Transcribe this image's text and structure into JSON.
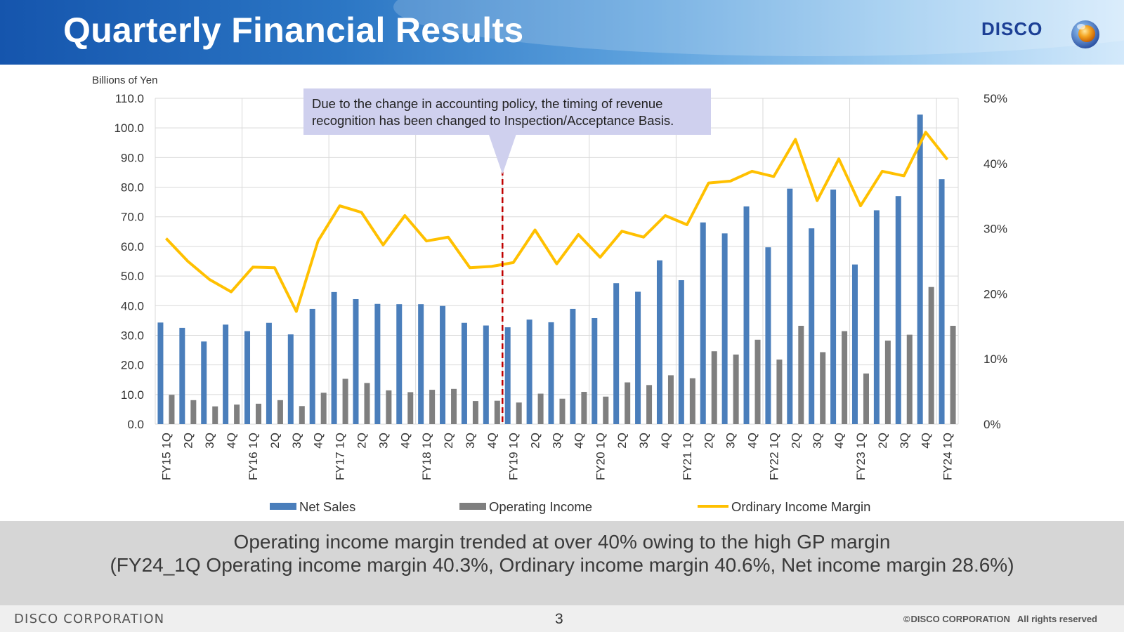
{
  "header": {
    "title": "Quarterly Financial Results",
    "logo_text": "DISCO",
    "logo_icon": "disco-globe-logo-icon"
  },
  "chart_data": {
    "type": "bar+line",
    "ylabel": "Billions of Yen",
    "ylim": [
      0,
      110
    ],
    "y_ticks": [
      "110.0",
      "100.0",
      "90.0",
      "80.0",
      "70.0",
      "60.0",
      "50.0",
      "40.0",
      "30.0",
      "20.0",
      "10.0",
      "0.0"
    ],
    "y2lim": [
      0,
      50
    ],
    "y2_ticks": [
      "50%",
      "40%",
      "30%",
      "20%",
      "10%",
      "0%"
    ],
    "grid": true,
    "legend_position": "bottom",
    "categories": [
      "FY15 1Q",
      "2Q",
      "3Q",
      "4Q",
      "FY16 1Q",
      "2Q",
      "3Q",
      "4Q",
      "FY17 1Q",
      "2Q",
      "3Q",
      "4Q",
      "FY18 1Q",
      "2Q",
      "3Q",
      "4Q",
      "FY19 1Q",
      "2Q",
      "3Q",
      "4Q",
      "FY20 1Q",
      "2Q",
      "3Q",
      "4Q",
      "FY21 1Q",
      "2Q",
      "3Q",
      "4Q",
      "FY22 1Q",
      "2Q",
      "3Q",
      "4Q",
      "FY23 1Q",
      "2Q",
      "3Q",
      "4Q",
      "FY24 1Q"
    ],
    "series": [
      {
        "name": "Net Sales",
        "kind": "bar",
        "axis": "left",
        "color": "#4a7ebb",
        "values": [
          34.3,
          32.5,
          27.9,
          33.6,
          31.4,
          34.2,
          30.3,
          38.9,
          44.6,
          42.2,
          40.6,
          40.5,
          40.5,
          39.9,
          34.2,
          33.3,
          32.7,
          35.3,
          34.4,
          38.9,
          35.8,
          47.6,
          44.7,
          55.3,
          48.6,
          68.1,
          64.4,
          73.5,
          59.7,
          79.5,
          66.1,
          79.2,
          53.9,
          72.2,
          77.0,
          104.5,
          82.7
        ]
      },
      {
        "name": "Operating Income",
        "kind": "bar",
        "axis": "left",
        "color": "#7f7f7f",
        "values": [
          9.9,
          8.1,
          6.0,
          6.6,
          6.9,
          8.1,
          6.1,
          10.6,
          15.3,
          13.9,
          11.4,
          10.8,
          11.6,
          11.9,
          7.8,
          7.9,
          7.3,
          10.3,
          8.6,
          10.9,
          9.3,
          14.1,
          13.2,
          16.5,
          15.5,
          24.6,
          23.5,
          28.5,
          21.8,
          33.2,
          24.3,
          31.4,
          17.1,
          28.2,
          30.2,
          46.3,
          33.2
        ]
      },
      {
        "name": "Ordinary Income Margin",
        "kind": "line",
        "axis": "right",
        "unit": "%",
        "color": "#ffc000",
        "values": [
          28.5,
          25.0,
          22.2,
          20.3,
          24.1,
          24.0,
          17.3,
          28.1,
          33.5,
          32.5,
          27.5,
          32.0,
          28.1,
          28.7,
          24.0,
          24.2,
          24.8,
          29.8,
          24.6,
          29.1,
          25.6,
          29.6,
          28.7,
          32.0,
          30.6,
          37.0,
          37.3,
          38.8,
          38.0,
          43.7,
          34.3,
          40.7,
          33.5,
          38.8,
          38.1,
          44.8,
          40.6
        ]
      }
    ],
    "annotation": {
      "text_line1": "Due to the change in accounting policy, the timing of revenue",
      "text_line2": "recognition has been changed to Inspection/Acceptance Basis.",
      "between_categories": [
        "4Q",
        "FY19 1Q"
      ],
      "divider_color": "#c00000",
      "box_color": "#cfd0ee"
    }
  },
  "summary": {
    "line1": "Operating income margin trended at over 40% owing to the high GP margin",
    "line2": "(FY24_1Q Operating income margin 40.3%, Ordinary income margin 40.6%, Net income margin 28.6%)"
  },
  "footer": {
    "company": "DISCO CORPORATION",
    "page": "3",
    "copyright_symbol": "©",
    "copyright_company": "DISCO CORPORATION",
    "rights": "All rights reserved"
  }
}
